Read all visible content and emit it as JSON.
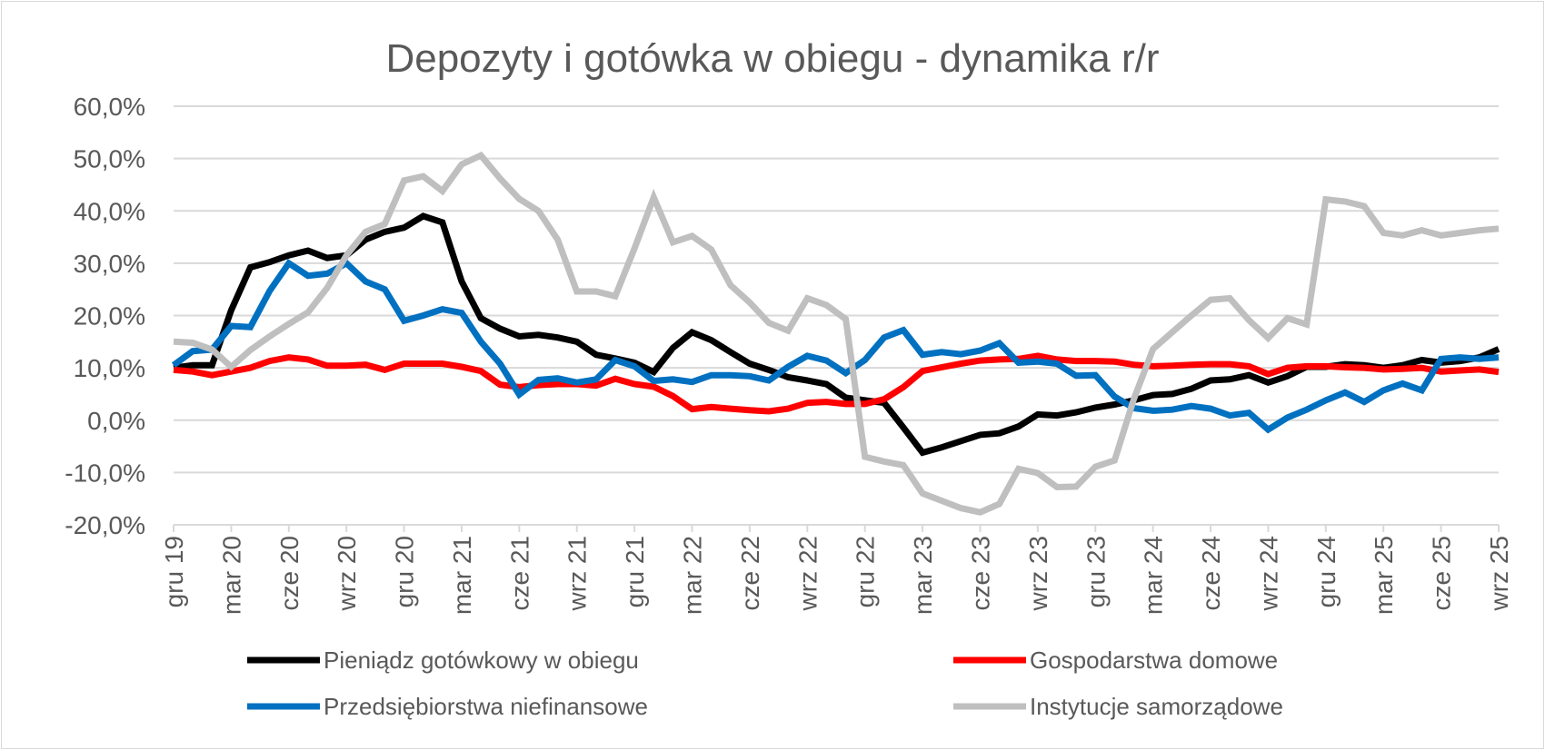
{
  "chart_data": {
    "type": "line",
    "title": "Depozyty i gotówka w obiegu - dynamika r/r",
    "xlabel": "",
    "ylabel": "",
    "ylim": [
      -20,
      60
    ],
    "y_ticks": [
      60,
      50,
      40,
      30,
      20,
      10,
      0,
      -10,
      -20
    ],
    "y_tick_labels": [
      "60,0%",
      "50,0%",
      "40,0%",
      "30,0%",
      "20,0%",
      "10,0%",
      "0,0%",
      "-10,0%",
      "-20,0%"
    ],
    "x": [
      "2019-12",
      "2020-01",
      "2020-02",
      "2020-03",
      "2020-04",
      "2020-05",
      "2020-06",
      "2020-07",
      "2020-08",
      "2020-09",
      "2020-10",
      "2020-11",
      "2020-12",
      "2021-01",
      "2021-02",
      "2021-03",
      "2021-04",
      "2021-05",
      "2021-06",
      "2021-07",
      "2021-08",
      "2021-09",
      "2021-10",
      "2021-11",
      "2021-12",
      "2022-01",
      "2022-02",
      "2022-03",
      "2022-04",
      "2022-05",
      "2022-06",
      "2022-07",
      "2022-08",
      "2022-09",
      "2022-10",
      "2022-11",
      "2022-12",
      "2023-01",
      "2023-02",
      "2023-03",
      "2023-04",
      "2023-05",
      "2023-06",
      "2023-07",
      "2023-08",
      "2023-09",
      "2023-10",
      "2023-11",
      "2023-12",
      "2024-01",
      "2024-02",
      "2024-03",
      "2024-04",
      "2024-05",
      "2024-06",
      "2024-07",
      "2024-08",
      "2024-09",
      "2024-10",
      "2024-11",
      "2024-12",
      "2025-01",
      "2025-02",
      "2025-03",
      "2025-04",
      "2025-05",
      "2025-06",
      "2025-07",
      "2025-08",
      "2025-09"
    ],
    "x_tick_labels": [
      "gru 19",
      "mar 20",
      "cze 20",
      "wrz 20",
      "gru 20",
      "mar 21",
      "cze 21",
      "wrz 21",
      "gru 21",
      "mar 22",
      "cze 22",
      "wrz 22",
      "gru 22",
      "mar 23",
      "cze 23",
      "wrz 23",
      "gru 23",
      "mar 24",
      "cze 24",
      "wrz 24",
      "gru 24",
      "mar 25",
      "cze 25",
      "wrz 25"
    ],
    "legend_placement": "bottom",
    "grid": true,
    "series": [
      {
        "name": "Pieniądz gotówkowy w obiegu",
        "color": "#000000",
        "values": [
          10.0,
          10.5,
          10.5,
          21.0,
          29.2,
          30.2,
          31.5,
          32.4,
          31.0,
          31.5,
          34.5,
          36.0,
          36.8,
          39.0,
          37.8,
          26.5,
          19.5,
          17.5,
          16.0,
          16.3,
          15.8,
          15.0,
          12.5,
          11.8,
          11.0,
          9.2,
          13.8,
          16.8,
          15.3,
          13.0,
          10.8,
          9.6,
          8.2,
          7.6,
          6.9,
          4.3,
          3.8,
          3.3,
          -1.4,
          -6.2,
          -5.2,
          -4.0,
          -2.8,
          -2.5,
          -1.2,
          1.1,
          0.9,
          1.5,
          2.4,
          3.0,
          3.8,
          4.8,
          5.0,
          6.0,
          7.6,
          7.8,
          8.6,
          7.2,
          8.4,
          10.2,
          10.2,
          10.7,
          10.5,
          10.0,
          10.5,
          11.5,
          11.0,
          11.3,
          12.0,
          13.6
        ]
      },
      {
        "name": "Gospodarstwa domowe",
        "color": "#ff0000",
        "values": [
          9.6,
          9.3,
          8.6,
          9.3,
          10.0,
          11.3,
          12.0,
          11.6,
          10.4,
          10.4,
          10.6,
          9.6,
          10.8,
          10.8,
          10.8,
          10.2,
          9.4,
          6.8,
          6.3,
          6.7,
          6.9,
          6.9,
          6.6,
          7.9,
          6.9,
          6.4,
          4.6,
          2.1,
          2.5,
          2.2,
          1.9,
          1.7,
          2.2,
          3.3,
          3.5,
          3.1,
          3.1,
          4.0,
          6.3,
          9.4,
          10.1,
          10.8,
          11.4,
          11.6,
          11.7,
          12.3,
          11.6,
          11.3,
          11.3,
          11.2,
          10.6,
          10.3,
          10.4,
          10.6,
          10.7,
          10.7,
          10.3,
          8.8,
          10.0,
          10.3,
          10.3,
          10.1,
          10.0,
          9.7,
          9.8,
          10.0,
          9.3,
          9.5,
          9.7,
          9.2
        ]
      },
      {
        "name": "Przedsiębiorstwa niefinansowe",
        "color": "#0070c0",
        "values": [
          10.5,
          13.2,
          13.5,
          18.0,
          17.8,
          24.7,
          30.0,
          27.6,
          28.0,
          30.0,
          26.5,
          25.0,
          19.0,
          20.0,
          21.2,
          20.5,
          15.0,
          10.8,
          4.9,
          7.7,
          8.0,
          7.2,
          7.8,
          11.5,
          10.3,
          7.5,
          7.8,
          7.3,
          8.6,
          8.6,
          8.4,
          7.6,
          10.2,
          12.3,
          11.4,
          9.0,
          11.5,
          15.8,
          17.2,
          12.5,
          13.0,
          12.6,
          13.3,
          14.7,
          11.0,
          11.2,
          10.8,
          8.5,
          8.6,
          4.5,
          2.3,
          1.8,
          2.0,
          2.7,
          2.2,
          0.9,
          1.4,
          -1.8,
          0.5,
          2.0,
          3.8,
          5.3,
          3.5,
          5.7,
          7.0,
          5.7,
          11.7,
          12.0,
          11.7,
          12.0
        ]
      },
      {
        "name": "Instytucje samorządowe",
        "color": "#bfbfbf",
        "values": [
          15.0,
          14.8,
          13.5,
          10.2,
          13.4,
          16.0,
          18.4,
          20.6,
          25.3,
          31.5,
          36.0,
          37.5,
          45.8,
          46.6,
          43.8,
          48.9,
          50.6,
          46.2,
          42.3,
          40.0,
          34.5,
          24.6,
          24.6,
          23.7,
          32.8,
          42.6,
          34.0,
          35.2,
          32.6,
          25.8,
          22.5,
          18.6,
          17.1,
          23.3,
          22.0,
          19.3,
          -7.0,
          -7.9,
          -8.6,
          -14.0,
          -15.4,
          -16.8,
          -17.6,
          -16.0,
          -9.3,
          -10.1,
          -12.8,
          -12.7,
          -8.9,
          -7.7,
          4.0,
          13.6,
          16.8,
          20.0,
          23.0,
          23.3,
          19.1,
          15.7,
          19.5,
          18.3,
          42.2,
          41.8,
          40.9,
          35.8,
          35.3,
          36.3,
          35.3,
          35.8,
          36.3,
          36.6
        ]
      }
    ]
  }
}
